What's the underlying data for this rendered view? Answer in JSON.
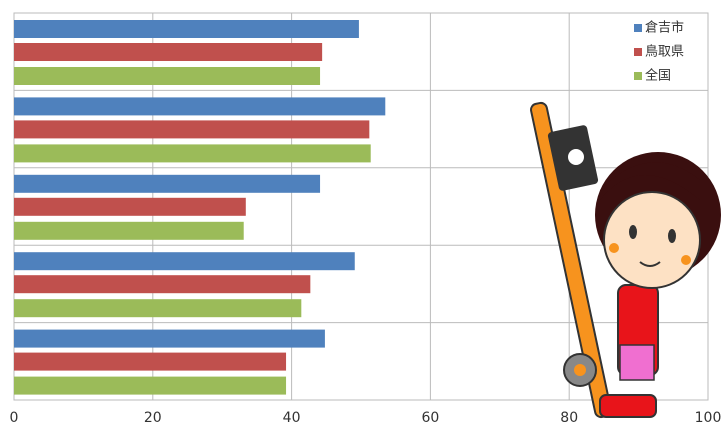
{
  "chart_data": {
    "type": "bar",
    "orientation": "horizontal",
    "categories": [
      null,
      null,
      null,
      null,
      null
    ],
    "series": [
      {
        "name": "倉吉市",
        "color": "#4f81bd",
        "values": [
          49.7,
          53.5,
          44.1,
          49.1,
          44.8
        ]
      },
      {
        "name": "鳥取県",
        "color": "#c0504d",
        "values": [
          44.4,
          51.2,
          33.4,
          42.7,
          39.2
        ]
      },
      {
        "name": "全国",
        "color": "#9bbb59",
        "values": [
          44.1,
          51.4,
          33.1,
          41.4,
          39.2
        ]
      }
    ],
    "xlim": [
      0,
      100
    ],
    "xticks": [
      0,
      20,
      40,
      60,
      80,
      100
    ],
    "grid": true,
    "legend": "top-right"
  }
}
